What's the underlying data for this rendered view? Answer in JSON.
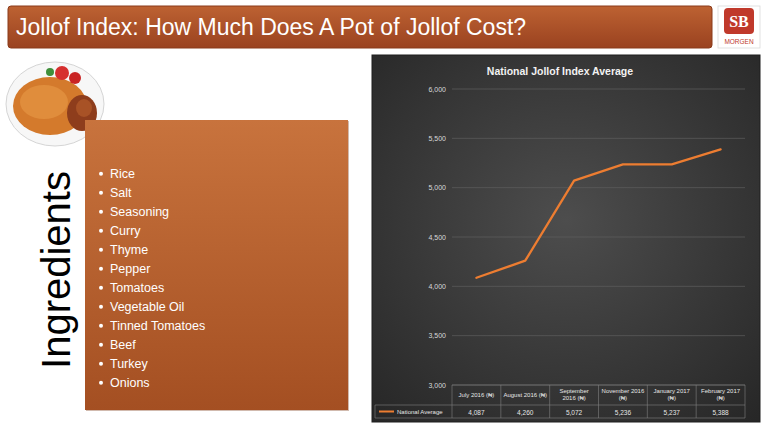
{
  "slide": {
    "title": "Jollof Index: How Much Does A Pot of Jollof Cost?",
    "logo": {
      "initials": "SB",
      "name": "MORGEN"
    },
    "ingredients_heading": "Ingredients",
    "ingredients": [
      "Rice",
      "Salt",
      "Seasoning",
      "Curry",
      "Thyme",
      "Pepper",
      "Tomatoes",
      "Vegetable Oil",
      "Tinned Tomatoes",
      "Beef",
      "Turkey",
      "Onions"
    ]
  },
  "chart_data": {
    "type": "line",
    "title": "National Jollof Index Average",
    "categories": [
      "July 2016 (₦)",
      "August 2016 (₦)",
      "September 2016 (₦)",
      "November 2016 (₦)",
      "January 2017 (₦)",
      "February 2017 (₦)"
    ],
    "series": [
      {
        "name": "National Average",
        "color": "#ed7d31",
        "values": [
          4087,
          4260,
          5072,
          5236,
          5237,
          5388
        ],
        "value_labels": [
          "4,087",
          "4,260",
          "5,072",
          "5,236",
          "5,237",
          "5,388"
        ]
      }
    ],
    "ylim": [
      3000,
      6000
    ],
    "yticks": [
      {
        "value": 3000,
        "label": "3,000"
      },
      {
        "value": 3500,
        "label": "3,500"
      },
      {
        "value": 4000,
        "label": "4,000"
      },
      {
        "value": 4500,
        "label": "4,500"
      },
      {
        "value": 5000,
        "label": "5,000"
      },
      {
        "value": 5500,
        "label": "5,500"
      },
      {
        "value": 6000,
        "label": "6,000"
      }
    ],
    "grid": true,
    "legend": "bottom"
  }
}
